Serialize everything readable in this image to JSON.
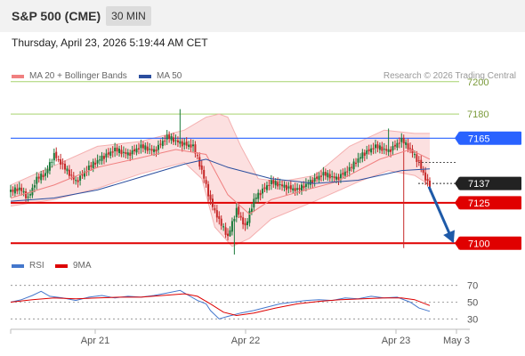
{
  "header": {
    "title": "S&P 500 (CME)",
    "timeframe": "30 MIN"
  },
  "timestamp": "Thursday, April 23, 2026 5:19:44 AM CET",
  "legend": {
    "main": [
      {
        "label": "MA 20 + Bollinger Bands",
        "color": "#f08080"
      },
      {
        "label": "MA 50",
        "color": "#2b4e9e"
      }
    ],
    "rsi": [
      {
        "label": "RSI",
        "color": "#4477cc"
      },
      {
        "label": "9MA",
        "color": "#dd0000"
      }
    ]
  },
  "copyright": "Research © 2026 Trading Central",
  "colors": {
    "up": "#1a7a3a",
    "down": "#c62828",
    "resistance": "#2962ff",
    "support": "#e00000",
    "price": "#222222",
    "target_arrow": "#1e5aa8"
  },
  "chart_data": [
    {
      "type": "candlestick",
      "title": "S&P 500 (CME)",
      "interval": "30 MIN",
      "ylim": [
        7093,
        7212
      ],
      "y_ticks": [
        7200,
        7180
      ],
      "x_tick_labels": [
        "Apr 21",
        "Apr 22",
        "Apr 23",
        "May 3"
      ],
      "levels": [
        {
          "label": "7165",
          "value": 7165,
          "kind": "resistance",
          "color": "#2962ff"
        },
        {
          "label": "7137",
          "value": 7137,
          "kind": "last-price",
          "color": "#222222"
        },
        {
          "label": "7125",
          "value": 7125,
          "kind": "support",
          "color": "#e00000"
        },
        {
          "label": "7100",
          "value": 7100,
          "kind": "support",
          "color": "#e00000"
        }
      ],
      "close_points": [
        [
          0,
          7132
        ],
        [
          4,
          7134
        ],
        [
          8,
          7128
        ],
        [
          12,
          7140
        ],
        [
          16,
          7143
        ],
        [
          20,
          7155
        ],
        [
          24,
          7148
        ],
        [
          30,
          7138
        ],
        [
          36,
          7147
        ],
        [
          42,
          7153
        ],
        [
          48,
          7158
        ],
        [
          54,
          7155
        ],
        [
          60,
          7160
        ],
        [
          66,
          7157
        ],
        [
          72,
          7166
        ],
        [
          78,
          7162
        ],
        [
          84,
          7160
        ],
        [
          88,
          7145
        ],
        [
          92,
          7126
        ],
        [
          96,
          7114
        ],
        [
          100,
          7104
        ],
        [
          104,
          7121
        ],
        [
          108,
          7110
        ],
        [
          112,
          7127
        ],
        [
          116,
          7133
        ],
        [
          120,
          7138
        ],
        [
          126,
          7135
        ],
        [
          132,
          7133
        ],
        [
          138,
          7138
        ],
        [
          144,
          7143
        ],
        [
          150,
          7140
        ],
        [
          156,
          7146
        ],
        [
          162,
          7155
        ],
        [
          168,
          7160
        ],
        [
          174,
          7157
        ],
        [
          180,
          7164
        ],
        [
          184,
          7158
        ],
        [
          188,
          7150
        ],
        [
          191,
          7140
        ],
        [
          193,
          7135
        ]
      ],
      "ma20": [
        [
          0,
          7128
        ],
        [
          20,
          7136
        ],
        [
          40,
          7147
        ],
        [
          60,
          7153
        ],
        [
          76,
          7158
        ],
        [
          90,
          7155
        ],
        [
          100,
          7130
        ],
        [
          110,
          7118
        ],
        [
          120,
          7127
        ],
        [
          136,
          7133
        ],
        [
          150,
          7138
        ],
        [
          170,
          7152
        ],
        [
          184,
          7158
        ],
        [
          193,
          7152
        ]
      ],
      "bollinger_upper": [
        [
          0,
          7136
        ],
        [
          20,
          7148
        ],
        [
          40,
          7160
        ],
        [
          60,
          7163
        ],
        [
          80,
          7170
        ],
        [
          90,
          7178
        ],
        [
          96,
          7180
        ],
        [
          100,
          7178
        ],
        [
          106,
          7160
        ],
        [
          114,
          7140
        ],
        [
          124,
          7138
        ],
        [
          140,
          7142
        ],
        [
          156,
          7160
        ],
        [
          172,
          7170
        ],
        [
          186,
          7168
        ],
        [
          193,
          7168
        ]
      ],
      "bollinger_lower": [
        [
          0,
          7123
        ],
        [
          20,
          7127
        ],
        [
          40,
          7134
        ],
        [
          60,
          7143
        ],
        [
          80,
          7150
        ],
        [
          88,
          7140
        ],
        [
          94,
          7110
        ],
        [
          102,
          7098
        ],
        [
          110,
          7103
        ],
        [
          120,
          7115
        ],
        [
          140,
          7126
        ],
        [
          160,
          7138
        ],
        [
          174,
          7145
        ],
        [
          186,
          7142
        ],
        [
          193,
          7136
        ]
      ],
      "ma50": [
        [
          0,
          7126
        ],
        [
          20,
          7128
        ],
        [
          40,
          7133
        ],
        [
          60,
          7141
        ],
        [
          80,
          7149
        ],
        [
          90,
          7152
        ],
        [
          100,
          7147
        ],
        [
          120,
          7140
        ],
        [
          140,
          7137
        ],
        [
          160,
          7139
        ],
        [
          180,
          7145
        ],
        [
          193,
          7146
        ]
      ],
      "projection": {
        "from": 7135,
        "to": 7100
      }
    },
    {
      "type": "line",
      "title": "RSI",
      "ylim": [
        25,
        75
      ],
      "y_ticks": [
        70,
        50,
        30
      ],
      "series": [
        {
          "name": "RSI",
          "color": "#4477cc",
          "points": [
            [
              0,
              50
            ],
            [
              5,
              53
            ],
            [
              10,
              58
            ],
            [
              14,
              63
            ],
            [
              18,
              57
            ],
            [
              24,
              55
            ],
            [
              30,
              52
            ],
            [
              36,
              56
            ],
            [
              42,
              58
            ],
            [
              48,
              55
            ],
            [
              54,
              57
            ],
            [
              60,
              56
            ],
            [
              66,
              58
            ],
            [
              72,
              61
            ],
            [
              78,
              64
            ],
            [
              82,
              58
            ],
            [
              86,
              52
            ],
            [
              90,
              48
            ],
            [
              92,
              40
            ],
            [
              94,
              35
            ],
            [
              96,
              30
            ],
            [
              100,
              33
            ],
            [
              106,
              37
            ],
            [
              112,
              40
            ],
            [
              118,
              44
            ],
            [
              124,
              48
            ],
            [
              130,
              50
            ],
            [
              136,
              52
            ],
            [
              142,
              53
            ],
            [
              148,
              52
            ],
            [
              154,
              55
            ],
            [
              160,
              54
            ],
            [
              166,
              57
            ],
            [
              172,
              55
            ],
            [
              178,
              56
            ],
            [
              184,
              50
            ],
            [
              188,
              43
            ],
            [
              193,
              39
            ]
          ]
        },
        {
          "name": "9MA",
          "color": "#dd0000",
          "points": [
            [
              0,
              50
            ],
            [
              10,
              53
            ],
            [
              20,
              55
            ],
            [
              30,
              54
            ],
            [
              40,
              55
            ],
            [
              50,
              56
            ],
            [
              60,
              56
            ],
            [
              70,
              58
            ],
            [
              80,
              60
            ],
            [
              86,
              57
            ],
            [
              92,
              48
            ],
            [
              98,
              38
            ],
            [
              104,
              34
            ],
            [
              112,
              37
            ],
            [
              122,
              43
            ],
            [
              132,
              48
            ],
            [
              142,
              51
            ],
            [
              152,
              53
            ],
            [
              162,
              54
            ],
            [
              172,
              55
            ],
            [
              180,
              55
            ],
            [
              186,
              53
            ],
            [
              193,
              46
            ]
          ]
        }
      ]
    }
  ]
}
